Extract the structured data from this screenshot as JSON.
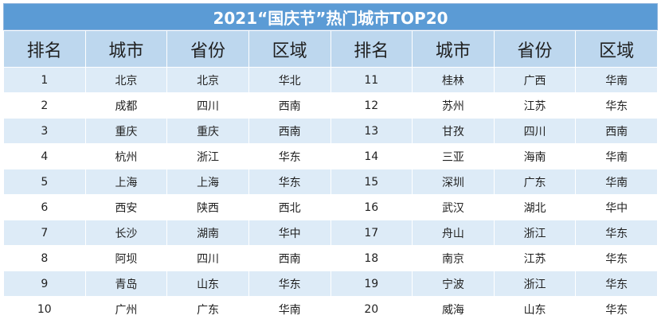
{
  "title": "2021“国庆节”热门城市TOP20",
  "headers": [
    "排名",
    "城市",
    "省份",
    "区域",
    "排名",
    "城市",
    "省份",
    "区域"
  ],
  "rows": [
    [
      "1",
      "北京",
      "北京",
      "华北",
      "11",
      "桂林",
      "广西",
      "华南"
    ],
    [
      "2",
      "成都",
      "四川",
      "西南",
      "12",
      "苏州",
      "江苏",
      "华东"
    ],
    [
      "3",
      "重庆",
      "重庆",
      "西南",
      "13",
      "甘孜",
      "四川",
      "西南"
    ],
    [
      "4",
      "杭州",
      "浙江",
      "华东",
      "14",
      "三亚",
      "海南",
      "华南"
    ],
    [
      "5",
      "上海",
      "上海",
      "华东",
      "15",
      "深圳",
      "广东",
      "华南"
    ],
    [
      "6",
      "西安",
      "陕西",
      "西北",
      "16",
      "武汉",
      "湖北",
      "华中"
    ],
    [
      "7",
      "长沙",
      "湖南",
      "华中",
      "17",
      "舟山",
      "浙江",
      "华东"
    ],
    [
      "8",
      "阿坝",
      "四川",
      "西南",
      "18",
      "南京",
      "江苏",
      "华东"
    ],
    [
      "9",
      "青岛",
      "山东",
      "华东",
      "19",
      "宁波",
      "浙江",
      "华东"
    ],
    [
      "10",
      "广州",
      "广东",
      "华南",
      "20",
      "威海",
      "山东",
      "华东"
    ]
  ],
  "colors": {
    "title_bg": "#5b9bd5",
    "header_bg": "#bdd7ee",
    "row_stripe": "#ddebf7"
  }
}
